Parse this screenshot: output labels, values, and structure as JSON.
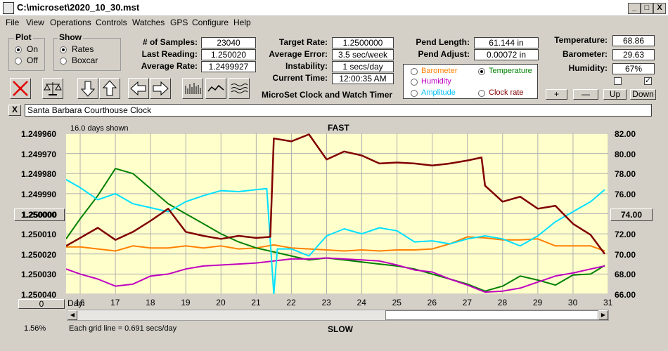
{
  "window": {
    "title": "C:\\microset\\2020_10_30.mst",
    "min": "_",
    "max": "□",
    "close": "X"
  },
  "menu": [
    "File",
    "View",
    "Operations",
    "Controls",
    "Watches",
    "GPS",
    "Configure",
    "Help"
  ],
  "plot_group": {
    "title": "Plot",
    "on": "On",
    "off": "Off",
    "selected": "On"
  },
  "show_group": {
    "title": "Show",
    "rates": "Rates",
    "boxcar": "Boxcar",
    "selected": "Rates"
  },
  "stats": {
    "samples_label": "# of Samples:",
    "samples": "23040",
    "last_label": "Last Reading:",
    "last": "1.250020",
    "avg_label": "Average Rate:",
    "avg": "1.2499927",
    "target_label": "Target Rate:",
    "target": "1.2500000",
    "avgerr_label": "Average Error:",
    "avgerr": "3.5 sec/week",
    "instab_label": "Instability:",
    "instab": "1 secs/day",
    "time_label": "Current Time:",
    "time": "12:00:35 AM",
    "pendlen_label": "Pend Length:",
    "pendlen": "61.144 in",
    "pendadj_label": "Pend Adjust:",
    "pendadj": "0.00072 in",
    "temp_label": "Temperature:",
    "temp": "68.86",
    "baro_label": "Barometer:",
    "baro": "29.63",
    "hum_label": "Humidity:",
    "hum": "67%"
  },
  "app_caption": "MicroSet Clock and Watch Timer",
  "secondary_plot": {
    "options": [
      {
        "label": "Barometer",
        "color": "#ff8000"
      },
      {
        "label": "Temperature",
        "color": "#008000"
      },
      {
        "label": "Humidity",
        "color": "#c000c0"
      },
      {
        "label": "Amplitude",
        "color": "#00c0ff"
      },
      {
        "label": "Clock rate",
        "color": "#800000"
      }
    ],
    "selected": "Temperature"
  },
  "adjust_buttons": {
    "plus": "+",
    "minus": "—",
    "up": "Up",
    "down": "Down"
  },
  "checkboxes": [
    false,
    true
  ],
  "note": {
    "close": "X",
    "text": "Santa Barbara Courthouse Clock"
  },
  "chart_labels": {
    "days_shown": "16.0 days shown",
    "fast": "FAST",
    "slow": "SLOW",
    "day_label": "Day:",
    "grid_info": "Each grid line = 0.691 secs/day",
    "left_button": "1.250000",
    "right_button": "74.00",
    "bottom_left_button": "0",
    "percent": "1.56%"
  },
  "chart_data": {
    "type": "line",
    "x_range": [
      15.6,
      31.0
    ],
    "x_ticks": [
      16,
      17,
      18,
      19,
      20,
      21,
      22,
      23,
      24,
      25,
      26,
      27,
      28,
      29,
      30,
      31
    ],
    "y_left_ticks": [
      "1.249960",
      "1.249970",
      "1.249980",
      "1.249990",
      "1.250000",
      "1.250010",
      "1.250020",
      "1.250030",
      "1.250040"
    ],
    "y_right_ticks": [
      "82.00",
      "80.00",
      "78.00",
      "76.00",
      "74.00",
      "72.00",
      "70.00",
      "68.00",
      "66.00"
    ],
    "ylim_left": [
      1.24996,
      1.25004
    ],
    "ylim_right": [
      66,
      82
    ],
    "series": [
      {
        "color": "#ff8000",
        "values": [
          [
            15.6,
            70.7
          ],
          [
            16.0,
            70.7
          ],
          [
            16.5,
            70.5
          ],
          [
            17.0,
            70.3
          ],
          [
            17.5,
            70.8
          ],
          [
            18.0,
            70.6
          ],
          [
            18.5,
            70.6
          ],
          [
            19.0,
            70.8
          ],
          [
            19.5,
            70.6
          ],
          [
            20.0,
            70.8
          ],
          [
            20.5,
            70.5
          ],
          [
            21.0,
            70.6
          ],
          [
            21.5,
            70.9
          ],
          [
            22.0,
            70.6
          ],
          [
            22.5,
            70.5
          ],
          [
            23.0,
            70.4
          ],
          [
            23.5,
            70.3
          ],
          [
            24.0,
            70.4
          ],
          [
            24.5,
            70.3
          ],
          [
            25.0,
            70.4
          ],
          [
            25.5,
            70.4
          ],
          [
            26.0,
            70.5
          ],
          [
            26.5,
            71.0
          ],
          [
            27.0,
            71.7
          ],
          [
            27.5,
            71.6
          ],
          [
            28.0,
            71.4
          ],
          [
            28.5,
            71.4
          ],
          [
            29.0,
            71.5
          ],
          [
            29.5,
            70.8
          ],
          [
            30.0,
            70.8
          ],
          [
            30.5,
            70.8
          ],
          [
            30.9,
            70.3
          ]
        ]
      },
      {
        "color": "#008000",
        "values": [
          [
            15.6,
            71.5
          ],
          [
            16.0,
            73.5
          ],
          [
            16.5,
            75.8
          ],
          [
            17.0,
            78.5
          ],
          [
            17.5,
            78.0
          ],
          [
            18.0,
            76.5
          ],
          [
            18.5,
            75.0
          ],
          [
            19.0,
            74.0
          ],
          [
            19.5,
            73.0
          ],
          [
            20.0,
            72.0
          ],
          [
            20.5,
            71.2
          ],
          [
            21.0,
            70.6
          ],
          [
            21.5,
            70.2
          ],
          [
            22.0,
            69.8
          ],
          [
            22.5,
            69.4
          ],
          [
            23.0,
            69.6
          ],
          [
            23.5,
            69.4
          ],
          [
            24.0,
            69.2
          ],
          [
            24.5,
            69.0
          ],
          [
            25.0,
            68.8
          ],
          [
            25.5,
            68.5
          ],
          [
            26.0,
            68.0
          ],
          [
            26.5,
            67.5
          ],
          [
            27.0,
            67.0
          ],
          [
            27.5,
            66.3
          ],
          [
            28.0,
            66.8
          ],
          [
            28.5,
            67.8
          ],
          [
            29.0,
            67.4
          ],
          [
            29.5,
            66.9
          ],
          [
            30.0,
            67.9
          ],
          [
            30.5,
            68.0
          ],
          [
            30.9,
            68.86
          ]
        ]
      },
      {
        "color": "#c000c0",
        "values": [
          [
            15.6,
            68.5
          ],
          [
            16.0,
            68.0
          ],
          [
            16.5,
            67.5
          ],
          [
            17.0,
            66.8
          ],
          [
            17.5,
            67.0
          ],
          [
            18.0,
            67.8
          ],
          [
            18.5,
            68.0
          ],
          [
            19.0,
            68.5
          ],
          [
            19.5,
            68.8
          ],
          [
            20.0,
            68.9
          ],
          [
            20.5,
            69.0
          ],
          [
            21.0,
            69.1
          ],
          [
            21.5,
            69.3
          ],
          [
            22.0,
            69.5
          ],
          [
            22.5,
            69.5
          ],
          [
            23.0,
            69.6
          ],
          [
            23.5,
            69.5
          ],
          [
            24.0,
            69.4
          ],
          [
            24.5,
            69.3
          ],
          [
            25.0,
            68.9
          ],
          [
            25.5,
            68.4
          ],
          [
            26.0,
            68.2
          ],
          [
            26.5,
            67.5
          ],
          [
            27.0,
            66.9
          ],
          [
            27.5,
            66.2
          ],
          [
            28.0,
            66.3
          ],
          [
            28.5,
            66.6
          ],
          [
            29.0,
            67.2
          ],
          [
            29.5,
            67.8
          ],
          [
            30.0,
            68.1
          ],
          [
            30.5,
            68.5
          ],
          [
            30.9,
            68.8
          ]
        ]
      },
      {
        "color": "#00e0ff",
        "values": [
          [
            15.6,
            77.4
          ],
          [
            16.0,
            76.6
          ],
          [
            16.5,
            75.4
          ],
          [
            17.0,
            76.0
          ],
          [
            17.5,
            75.0
          ],
          [
            18.0,
            74.6
          ],
          [
            18.5,
            74.2
          ],
          [
            19.0,
            75.2
          ],
          [
            19.5,
            75.8
          ],
          [
            20.0,
            76.3
          ],
          [
            20.5,
            76.2
          ],
          [
            21.0,
            76.4
          ],
          [
            21.3,
            76.5
          ],
          [
            21.5,
            66.0
          ],
          [
            21.6,
            70.5
          ],
          [
            22.0,
            70.5
          ],
          [
            22.5,
            69.8
          ],
          [
            23.0,
            71.8
          ],
          [
            23.5,
            72.5
          ],
          [
            24.0,
            72.0
          ],
          [
            24.5,
            72.6
          ],
          [
            25.0,
            72.3
          ],
          [
            25.5,
            71.2
          ],
          [
            26.0,
            71.3
          ],
          [
            26.5,
            71.0
          ],
          [
            27.0,
            71.5
          ],
          [
            27.5,
            71.8
          ],
          [
            28.0,
            71.5
          ],
          [
            28.5,
            70.8
          ],
          [
            29.0,
            71.8
          ],
          [
            29.5,
            73.2
          ],
          [
            30.0,
            74.2
          ],
          [
            30.5,
            75.2
          ],
          [
            30.9,
            76.4
          ]
        ]
      },
      {
        "color": "#800000",
        "values": [
          [
            15.6,
            70.8
          ],
          [
            16.0,
            71.6
          ],
          [
            16.5,
            72.6
          ],
          [
            17.0,
            71.4
          ],
          [
            17.5,
            72.2
          ],
          [
            18.0,
            73.3
          ],
          [
            18.5,
            74.5
          ],
          [
            19.0,
            72.2
          ],
          [
            19.5,
            71.8
          ],
          [
            20.0,
            71.5
          ],
          [
            20.5,
            71.8
          ],
          [
            21.0,
            71.6
          ],
          [
            21.4,
            71.7
          ],
          [
            21.5,
            81.5
          ],
          [
            22.0,
            81.2
          ],
          [
            22.5,
            81.9
          ],
          [
            23.0,
            79.4
          ],
          [
            23.5,
            80.2
          ],
          [
            24.0,
            79.8
          ],
          [
            24.5,
            79.0
          ],
          [
            25.0,
            79.1
          ],
          [
            25.5,
            79.0
          ],
          [
            26.0,
            78.8
          ],
          [
            26.5,
            79.0
          ],
          [
            27.0,
            79.3
          ],
          [
            27.4,
            79.6
          ],
          [
            27.5,
            76.8
          ],
          [
            28.0,
            75.2
          ],
          [
            28.5,
            75.7
          ],
          [
            29.0,
            74.5
          ],
          [
            29.5,
            74.8
          ],
          [
            30.0,
            73.0
          ],
          [
            30.5,
            71.9
          ],
          [
            30.9,
            70.0
          ]
        ]
      }
    ]
  }
}
